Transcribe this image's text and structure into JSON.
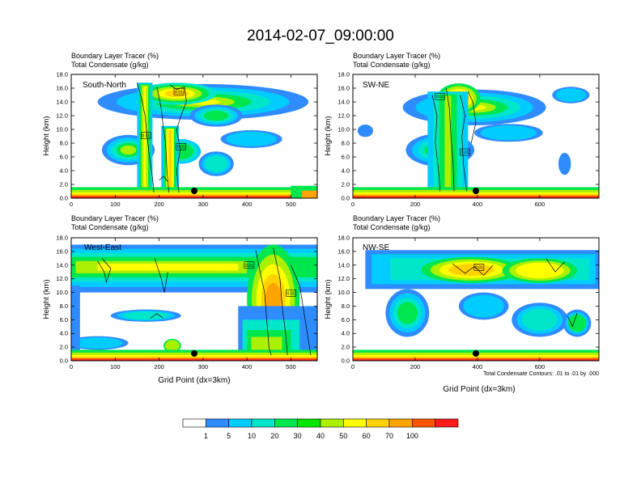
{
  "title": "2014-02-07_09:00:00",
  "panel_header": {
    "line1": "Boundary Layer Tracer   (%)",
    "line2": "Total Condensate   (g/kg)"
  },
  "y_axis_label": "Height (km)",
  "x_axis_label": "Grid Point (dx=3km)",
  "contour_note": "Total Condensate Contours: .01 to .01 by .000",
  "colorbar": {
    "labels": [
      "1",
      "5",
      "10",
      "20",
      "30",
      "40",
      "50",
      "60",
      "70",
      "100"
    ],
    "colors": [
      "#ffffff",
      "#2f8cff",
      "#00ccff",
      "#00e6c8",
      "#00e64d",
      "#00e600",
      "#aaf000",
      "#ffff00",
      "#ffd200",
      "#ffa300",
      "#ff5500",
      "#ff1a1a"
    ]
  },
  "chart_data": [
    {
      "type": "heatmap",
      "panel_label": "South-North",
      "ylabel": "Height (km)",
      "ylim": [
        0,
        18
      ],
      "yticks": [
        "0.0",
        "2.0",
        "4.0",
        "6.0",
        "8.0",
        "10.0",
        "12.0",
        "14.0",
        "16.0",
        "18.0"
      ],
      "xlim": [
        0,
        560
      ],
      "xticks": [
        "0",
        "100",
        "200",
        "300",
        "400",
        "500"
      ],
      "marker_x": 280,
      "contour_labels": [
        {
          "text": "0.01",
          "x": 245,
          "y": 15.5
        },
        {
          "text": "0.01",
          "x": 170,
          "y": 9.1
        },
        {
          "text": "0.01",
          "x": 250,
          "y": 7.5
        }
      ]
    },
    {
      "type": "heatmap",
      "panel_label": "SW-NE",
      "ylabel": "Height (km)",
      "ylim": [
        0,
        18
      ],
      "yticks": [
        "0.0",
        "2.0",
        "4.0",
        "6.0",
        "8.0",
        "10.0",
        "12.0",
        "14.0",
        "16.0",
        "18.0"
      ],
      "xlim": [
        0,
        790
      ],
      "xticks": [
        "0",
        "200",
        "400",
        "600"
      ],
      "marker_x": 395,
      "contour_labels": [
        {
          "text": "0.01",
          "x": 280,
          "y": 14.8
        },
        {
          "text": "0.01",
          "x": 360,
          "y": 6.7
        }
      ]
    },
    {
      "type": "heatmap",
      "panel_label": "West-East",
      "ylabel": "Height (km)",
      "ylim": [
        0,
        18
      ],
      "yticks": [
        "0.0",
        "2.0",
        "4.0",
        "6.0",
        "8.0",
        "10.0",
        "12.0",
        "14.0",
        "16.0",
        "18.0"
      ],
      "xlim": [
        0,
        560
      ],
      "xticks": [
        "0",
        "100",
        "200",
        "300",
        "400",
        "500"
      ],
      "marker_x": 280,
      "contour_labels": [
        {
          "text": "0.01",
          "x": 405,
          "y": 14.0
        },
        {
          "text": "0.01",
          "x": 500,
          "y": 9.9
        }
      ]
    },
    {
      "type": "heatmap",
      "panel_label": "NW-SE",
      "ylabel": "Height (km)",
      "ylim": [
        0,
        18
      ],
      "yticks": [
        "0.0",
        "2.0",
        "4.0",
        "6.0",
        "8.0",
        "10.0",
        "12.0",
        "14.0",
        "16.0",
        "18.0"
      ],
      "xlim": [
        0,
        790
      ],
      "xticks": [
        "0",
        "200",
        "400",
        "600"
      ],
      "marker_x": 395,
      "contour_labels": [
        {
          "text": "0.01",
          "x": 405,
          "y": 13.7
        }
      ]
    }
  ]
}
